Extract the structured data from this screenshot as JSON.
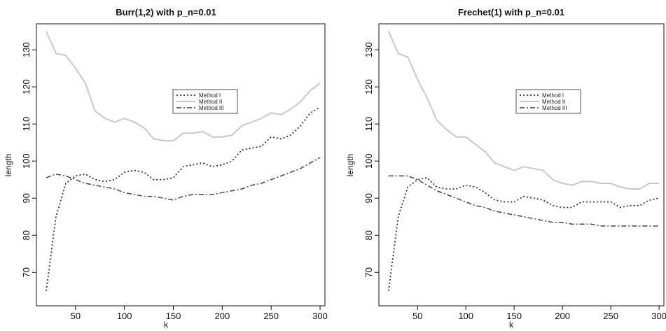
{
  "chart_data": [
    {
      "type": "line",
      "title": "Burr(1,2) with p_n=0.01",
      "xlabel": "k",
      "ylabel": "length",
      "xlim": [
        10,
        305
      ],
      "ylim": [
        61,
        137
      ],
      "xticks": [
        "50",
        "100",
        "150",
        "200",
        "250",
        "300"
      ],
      "yticks": [
        "70",
        "80",
        "90",
        "100",
        "110",
        "120",
        "130"
      ],
      "legend": {
        "position": "upper-center",
        "entries": [
          "Method I",
          "Method II",
          "Method III"
        ]
      },
      "x": [
        20,
        30,
        40,
        50,
        60,
        70,
        80,
        90,
        100,
        110,
        120,
        130,
        140,
        150,
        160,
        170,
        180,
        190,
        200,
        210,
        220,
        230,
        240,
        250,
        260,
        270,
        280,
        290,
        300
      ],
      "series": [
        {
          "name": "Method I",
          "style": "dotted",
          "color": "#333333",
          "values": [
            65,
            85,
            94,
            96,
            96.5,
            95,
            94.5,
            95,
            97,
            97.5,
            97,
            95,
            95,
            95.5,
            98.5,
            99,
            99.5,
            98.5,
            99,
            100,
            103,
            103.5,
            104,
            106.5,
            106,
            107,
            109.5,
            113,
            114.5
          ]
        },
        {
          "name": "Method II",
          "style": "solid",
          "color": "#c8c8c8",
          "values": [
            135,
            129,
            128.5,
            125,
            121,
            113.5,
            111.5,
            110.5,
            111.5,
            110.5,
            109,
            106,
            105.5,
            105.5,
            107.5,
            107.5,
            108,
            106.5,
            106.5,
            107,
            109.5,
            110.5,
            111.5,
            113,
            112.5,
            114,
            116,
            119,
            121
          ]
        },
        {
          "name": "Method III",
          "style": "dashed",
          "color": "#444444",
          "values": [
            95.5,
            96.5,
            96,
            95,
            94,
            93.5,
            93,
            92.5,
            91.5,
            91,
            90.5,
            90.5,
            90,
            89.5,
            90.5,
            91,
            91,
            91,
            91.5,
            92,
            92.5,
            93.5,
            94,
            95,
            96,
            97,
            98,
            99.5,
            101
          ]
        }
      ]
    },
    {
      "type": "line",
      "title": "Frechet(1) with p_n=0.01",
      "xlabel": "k",
      "ylabel": "length",
      "xlim": [
        10,
        305
      ],
      "ylim": [
        61,
        137
      ],
      "xticks": [
        "50",
        "100",
        "150",
        "200",
        "250",
        "300"
      ],
      "yticks": [
        "70",
        "80",
        "90",
        "100",
        "110",
        "120",
        "130"
      ],
      "legend": {
        "position": "upper-center",
        "entries": [
          "Method I",
          "Method II",
          "Method III"
        ]
      },
      "x": [
        20,
        30,
        40,
        50,
        60,
        70,
        80,
        90,
        100,
        110,
        120,
        130,
        140,
        150,
        160,
        170,
        180,
        190,
        200,
        210,
        220,
        230,
        240,
        250,
        260,
        270,
        280,
        290,
        300
      ],
      "series": [
        {
          "name": "Method I",
          "style": "dotted",
          "color": "#333333",
          "values": [
            65,
            85,
            93,
            95,
            95.5,
            93,
            92.5,
            92.5,
            93.5,
            93,
            91.5,
            89.5,
            89,
            89,
            90.5,
            90,
            89.5,
            88,
            87.5,
            87.5,
            89,
            89,
            89,
            89,
            87.5,
            88,
            88,
            89.5,
            90
          ]
        },
        {
          "name": "Method II",
          "style": "solid",
          "color": "#c8c8c8",
          "values": [
            135,
            129,
            128,
            122,
            117,
            111,
            108.5,
            106.5,
            106.5,
            104.5,
            102.5,
            99.5,
            98.5,
            97.5,
            98.5,
            98,
            97.5,
            95,
            94,
            93.5,
            94.5,
            94.5,
            94,
            94,
            93,
            92.5,
            92.5,
            94,
            94
          ]
        },
        {
          "name": "Method III",
          "style": "dashed",
          "color": "#444444",
          "values": [
            96,
            96,
            96,
            95,
            93.5,
            92,
            91,
            90,
            89,
            88,
            87.5,
            86.5,
            86,
            85.5,
            85,
            84.5,
            84,
            83.5,
            83.5,
            83,
            83,
            83,
            82.5,
            82.5,
            82.5,
            82.5,
            82.5,
            82.5,
            82.5
          ]
        }
      ]
    }
  ]
}
